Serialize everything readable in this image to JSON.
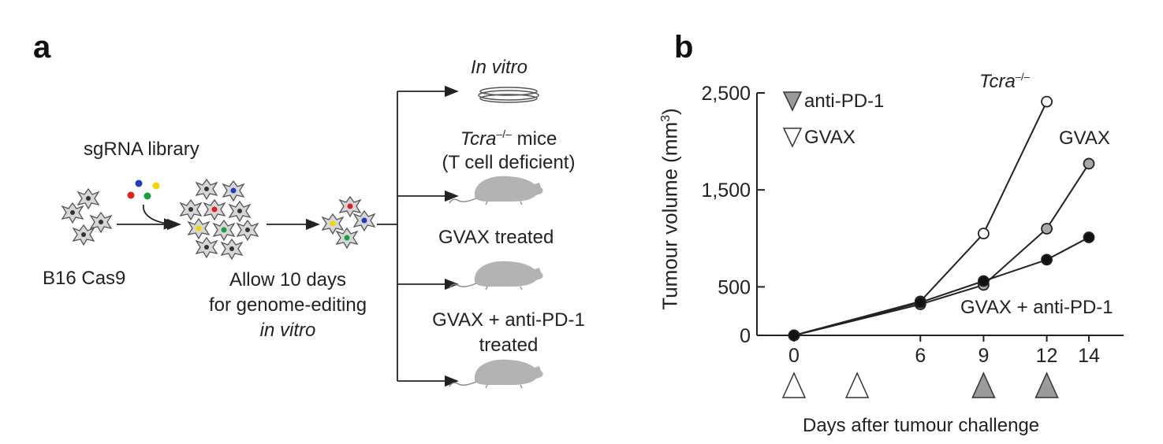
{
  "panel_a": {
    "letter": "a",
    "sgrna_label": "sgRNA library",
    "b16_label": "B16 Cas9",
    "allow_line1": "Allow 10 days",
    "allow_line2": "for genome-editing",
    "allow_line3": "in vitro",
    "invitro_label": "In vitro",
    "tcra_italic": "Tcra",
    "tcra_sup": "–/–",
    "tcra_rest": " mice",
    "tcell_label": "(T cell deficient)",
    "gvax_treated": "GVAX treated",
    "gvax_pd1_line1": "GVAX + anti-PD-1",
    "gvax_pd1_line2": "treated"
  },
  "panel_b": {
    "letter": "b",
    "legend": [
      {
        "label": "anti-PD-1",
        "fill": "#9a9a9a"
      },
      {
        "label": "GVAX",
        "fill": "#ffffff"
      }
    ],
    "series_labels": {
      "tcra": "Tcra",
      "tcra_sup": "–/–",
      "gvax": "GVAX",
      "gvax_pd1": "GVAX + anti-PD-1"
    },
    "treatment_markers": [
      {
        "day": 0,
        "type": "GVAX"
      },
      {
        "day": 3,
        "type": "GVAX"
      },
      {
        "day": 9,
        "type": "anti-PD-1"
      },
      {
        "day": 12,
        "type": "anti-PD-1"
      }
    ]
  },
  "chart_data": {
    "type": "line",
    "ylabel_main": "Tumour volume (mm",
    "ylabel_sup": "3",
    "ylabel_close": ")",
    "xlabel": "Days after tumour challenge",
    "x_ticks": [
      0,
      6,
      9,
      12,
      14
    ],
    "x_tick_labels": [
      "0",
      "6",
      "9",
      "12",
      "14"
    ],
    "y_ticks": [
      0,
      500,
      1500,
      2500
    ],
    "y_tick_labels": [
      "0",
      "500",
      "1,500",
      "2,500"
    ],
    "xlim": [
      0,
      14
    ],
    "ylim": [
      0,
      2500
    ],
    "series": [
      {
        "name": "Tcra–/–",
        "x": [
          0,
          6,
          9,
          12
        ],
        "values": [
          0,
          350,
          1050,
          2410
        ],
        "fill": "#ffffff"
      },
      {
        "name": "GVAX",
        "x": [
          0,
          6,
          9,
          12,
          14
        ],
        "values": [
          0,
          320,
          520,
          1100,
          1770
        ],
        "fill": "#a8a8a8"
      },
      {
        "name": "GVAX + anti-PD-1",
        "x": [
          0,
          6,
          9,
          12,
          14
        ],
        "values": [
          0,
          340,
          560,
          780,
          1010
        ],
        "fill": "#111111"
      }
    ]
  }
}
